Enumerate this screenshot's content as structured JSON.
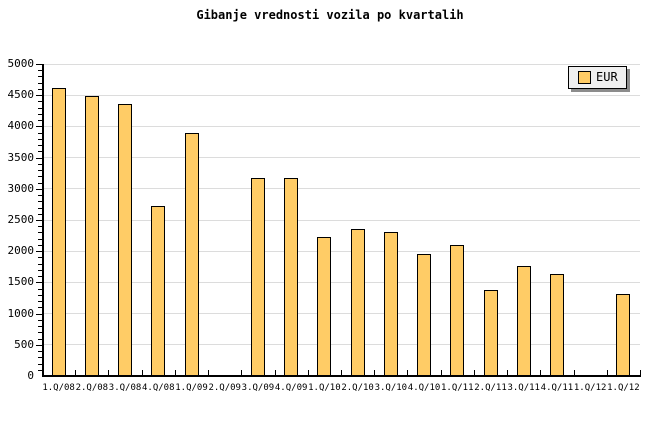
{
  "title": "Gibanje vrednosti vozila po kvartalih",
  "legend": {
    "label": "EUR"
  },
  "colors": {
    "bar_fill": "#FFCC66",
    "bar_border": "#000000",
    "gridline": "#dcdcdc",
    "axis": "#000000",
    "legend_bg": "#efefef",
    "legend_shadow": "#8c8c8c",
    "background": "#ffffff"
  },
  "chart_data": {
    "type": "bar",
    "title": "Gibanje vrednosti vozila po kvartalih",
    "series_name": "EUR",
    "categories": [
      "1.Q/08",
      "2.Q/08",
      "3.Q/08",
      "4.Q/08",
      "1.Q/09",
      "2.Q/09",
      "3.Q/09",
      "4.Q/09",
      "1.Q/10",
      "2.Q/10",
      "3.Q/10",
      "4.Q/10",
      "1.Q/11",
      "2.Q/11",
      "3.Q/11",
      "4.Q/11",
      "1.Q/12",
      "1.Q/12"
    ],
    "values": [
      4610,
      4490,
      4360,
      2720,
      3900,
      null,
      3170,
      3170,
      2230,
      2360,
      2300,
      1960,
      2100,
      1380,
      1770,
      1640,
      null,
      1310
    ],
    "xlabel": "",
    "ylabel": "",
    "ylim": [
      0,
      5000
    ],
    "ytick_step": 500,
    "ytick_minor_step": 100,
    "grid": "horizontal",
    "legend_position": "top-right"
  }
}
